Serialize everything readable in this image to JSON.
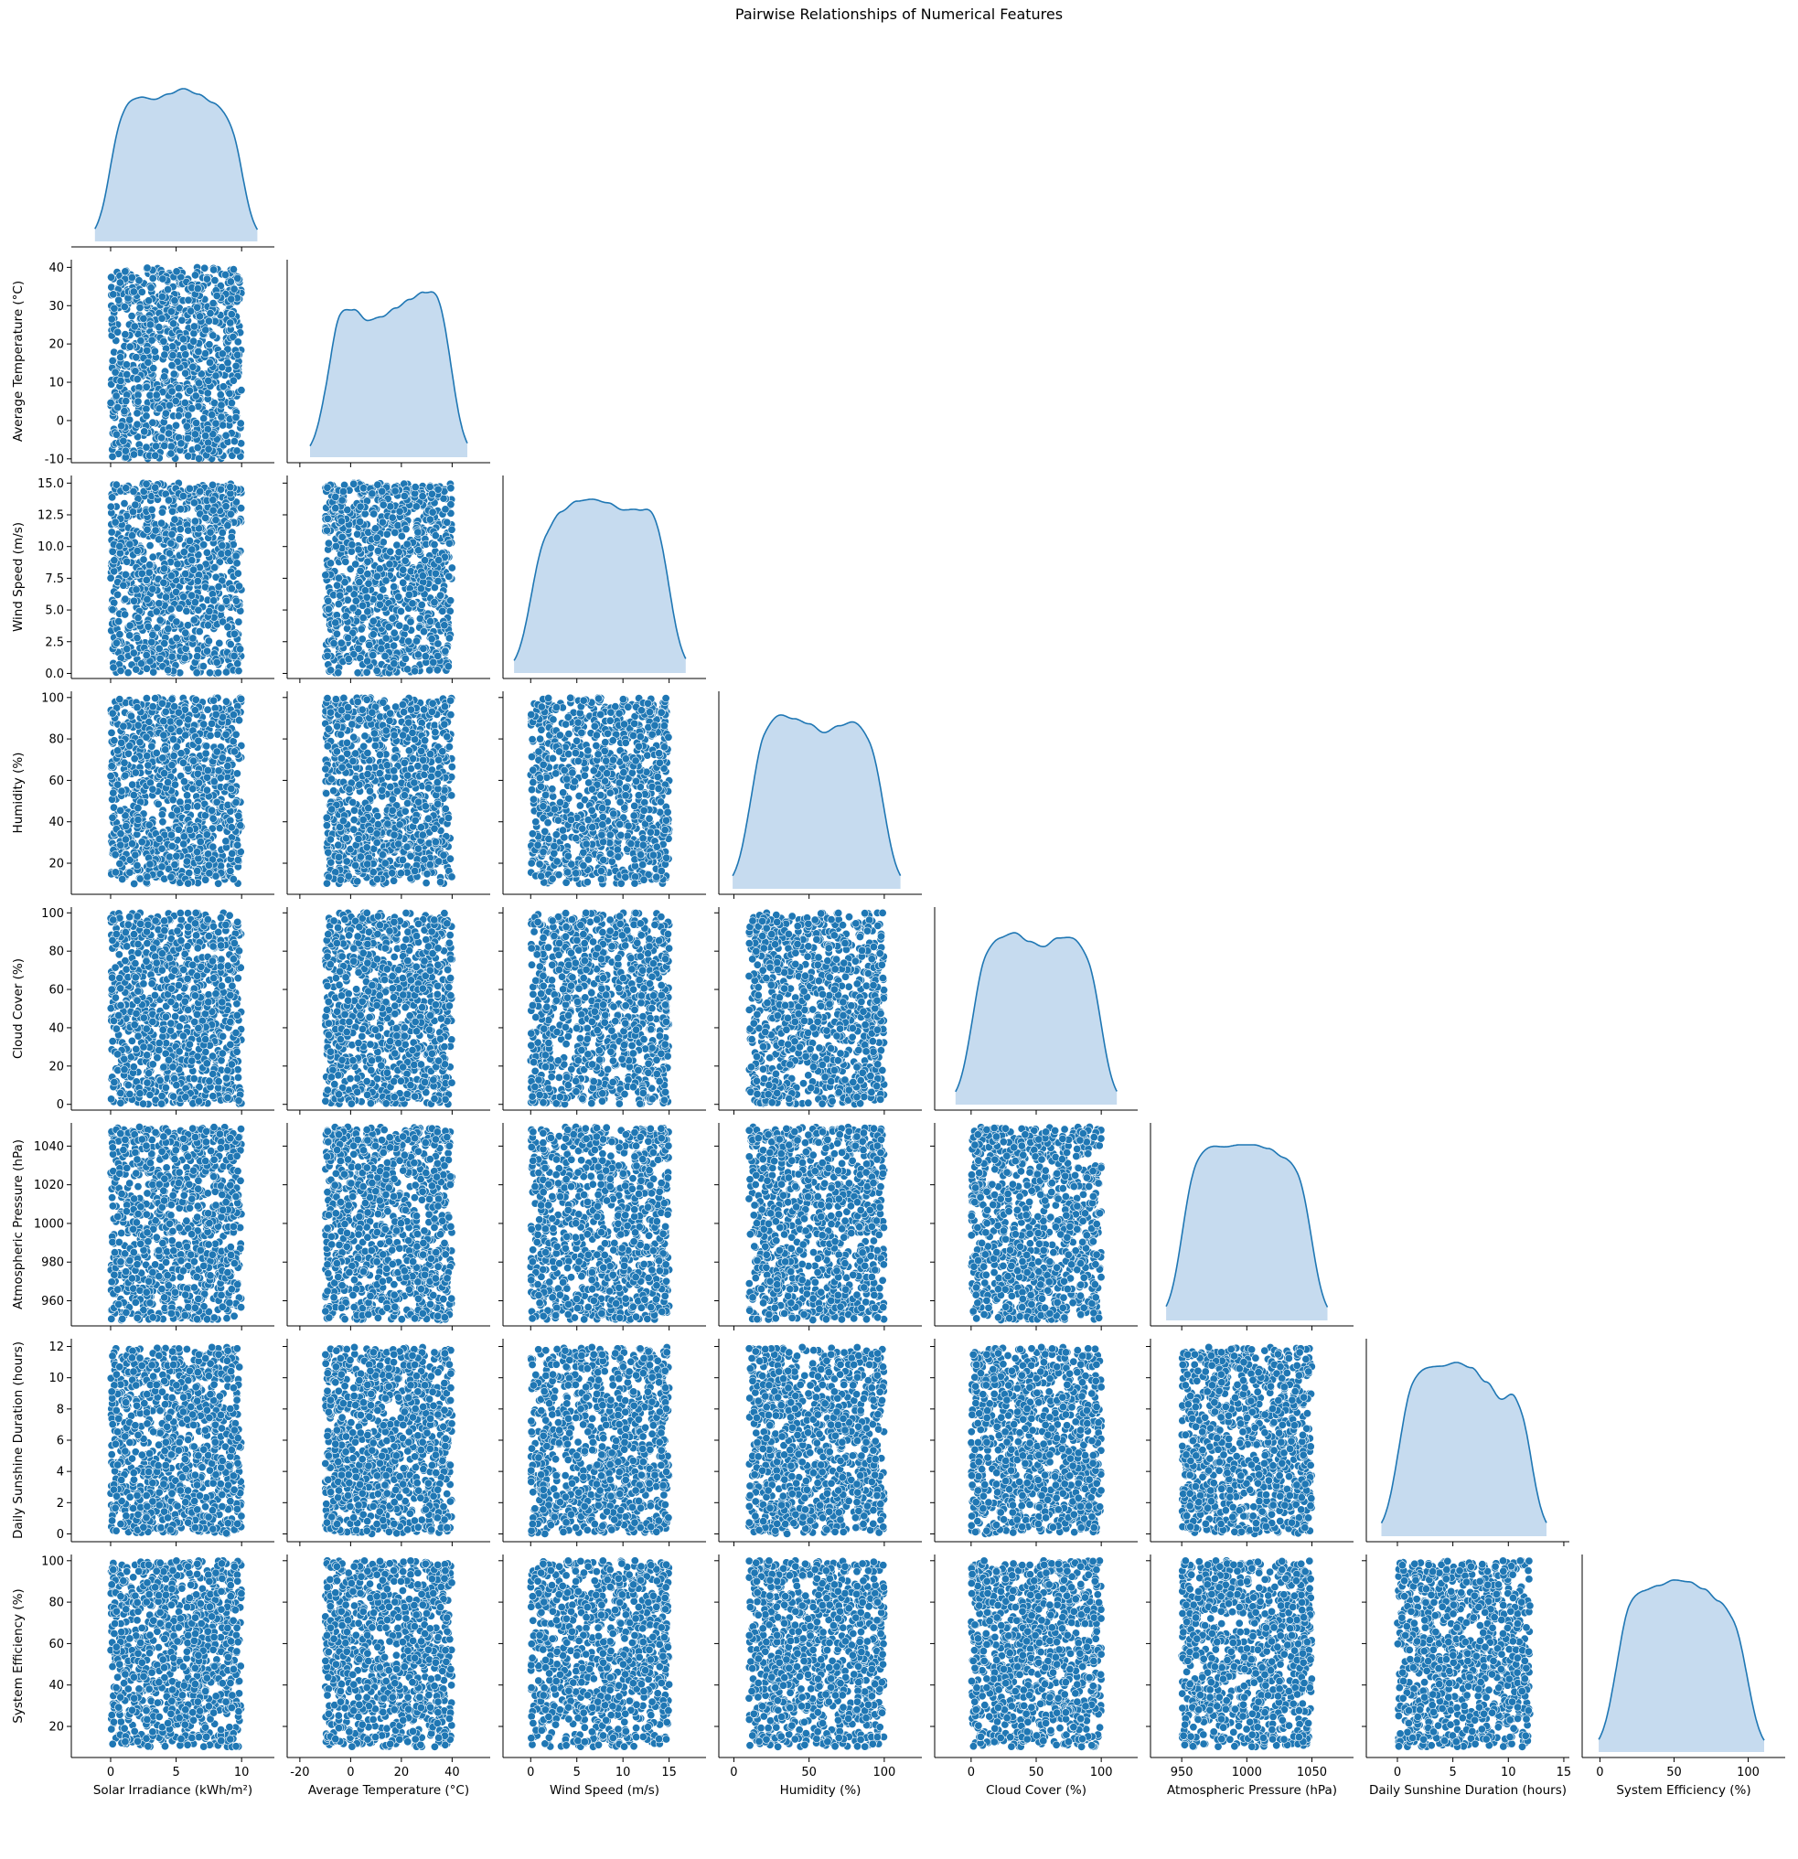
{
  "chart_data": {
    "type": "pairplot",
    "title": "Pairwise Relationships of Numerical Features",
    "corner": true,
    "diagonal": "kde",
    "offdiagonal": "scatter",
    "sample_size": 1000,
    "distribution": "uniform",
    "colors": {
      "marker": "#1f77b4",
      "kde_line": "#1f77b4",
      "kde_fill": "#c6dbef"
    },
    "variables": [
      {
        "name": "Solar Irradiance (kWh/m²)",
        "range": [
          0,
          10
        ],
        "xlim": [
          -3,
          12.5
        ],
        "ylim": null,
        "ticks": [
          0,
          5,
          10
        ],
        "kde_peaks": [
          0.86,
          0.84,
          0.83,
          0.81,
          0.84,
          0.87,
          0.84,
          0.8,
          0.78,
          0.81
        ]
      },
      {
        "name": "Average Temperature (°C)",
        "range": [
          -10,
          40
        ],
        "xlim": [
          -25,
          55
        ],
        "ylim": [
          -11,
          42
        ],
        "ticks": [
          -20,
          0,
          20,
          40
        ],
        "yticks": [
          -10,
          0,
          10,
          20,
          30,
          40
        ],
        "kde_peaks": [
          0.77,
          0.89,
          0.85,
          0.78,
          0.8,
          0.85,
          0.9,
          0.95,
          1.0,
          0.96
        ]
      },
      {
        "name": "Wind Speed (m/s)",
        "range": [
          0,
          15
        ],
        "xlim": [
          -3,
          19
        ],
        "ylim": [
          -0.4,
          15.6
        ],
        "ticks": [
          0,
          5,
          10,
          15
        ],
        "yticks": [
          0.0,
          2.5,
          5.0,
          7.5,
          10.0,
          12.5,
          15.0
        ],
        "kde_peaks": [
          0.85,
          0.87,
          0.93,
          0.98,
          0.99,
          0.97,
          0.93,
          0.94,
          0.99,
          0.98
        ]
      },
      {
        "name": "Humidity (%)",
        "range": [
          10,
          100
        ],
        "xlim": [
          -10,
          125
        ],
        "ylim": [
          5,
          103
        ],
        "ticks": [
          0,
          50,
          100
        ],
        "yticks": [
          20,
          40,
          60,
          80,
          100
        ],
        "kde_peaks": [
          0.89,
          0.97,
          1.0,
          0.97,
          0.94,
          0.89,
          0.93,
          0.96,
          0.93,
          0.9
        ]
      },
      {
        "name": "Cloud Cover (%)",
        "range": [
          0,
          100
        ],
        "xlim": [
          -28,
          128
        ],
        "ylim": [
          -3,
          103
        ],
        "ticks": [
          0,
          50,
          100
        ],
        "yticks": [
          0,
          20,
          40,
          60,
          80,
          100
        ],
        "kde_peaks": [
          0.88,
          0.94,
          0.96,
          0.98,
          0.93,
          0.9,
          0.95,
          0.96,
          0.93,
          0.91
        ]
      },
      {
        "name": "Atmospheric Pressure (hPa)",
        "range": [
          950,
          1050
        ],
        "xlim": [
          926,
          1082
        ],
        "ylim": [
          947,
          1052
        ],
        "ticks": [
          950,
          1000,
          1050
        ],
        "yticks": [
          960,
          980,
          1000,
          1020,
          1040
        ],
        "kde_peaks": [
          0.96,
          0.99,
          1.0,
          0.99,
          1.0,
          1.0,
          0.98,
          0.94,
          0.93,
          0.91
        ]
      },
      {
        "name": "Daily Sunshine Duration (hours)",
        "range": [
          0,
          12
        ],
        "xlim": [
          -2.8,
          15.5
        ],
        "ylim": [
          -0.5,
          12.5
        ],
        "ticks": [
          0,
          5,
          10,
          15
        ],
        "yticks": [
          0,
          2,
          4,
          6,
          8,
          10,
          12
        ],
        "kde_peaks": [
          0.9,
          0.96,
          0.97,
          0.97,
          0.99,
          0.96,
          0.88,
          0.79,
          0.87,
          0.92
        ]
      },
      {
        "name": "System Efficiency (%)",
        "range": [
          10,
          100
        ],
        "xlim": [
          -12,
          125
        ],
        "ylim": [
          5,
          103
        ],
        "ticks": [
          0,
          50,
          100
        ],
        "yticks": [
          20,
          40,
          60,
          80,
          100
        ],
        "kde_peaks": [
          0.86,
          0.93,
          0.93,
          0.95,
          0.98,
          0.97,
          0.93,
          0.87,
          0.83,
          0.8
        ]
      }
    ]
  }
}
